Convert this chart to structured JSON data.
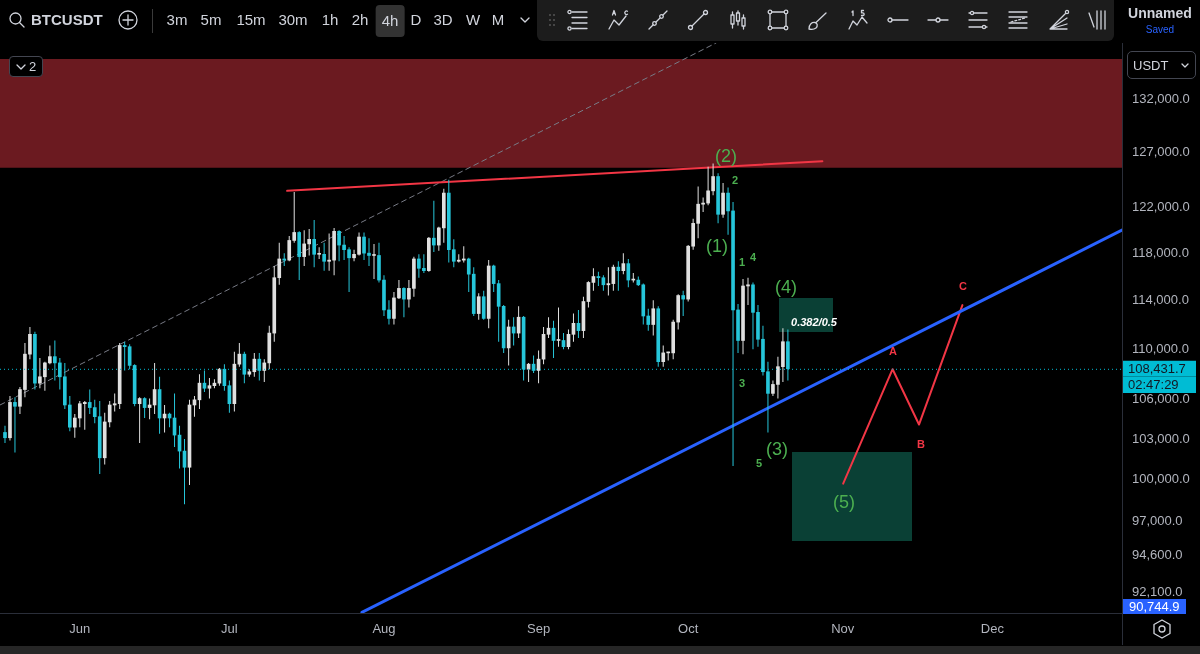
{
  "chart_data": {
    "type": "candlestick",
    "title": "BTCUSDT",
    "ylabel": "USDT",
    "x": [
      "--05-17",
      "--05-18",
      "--05-19",
      "--05-20",
      "--05-21",
      "--05-22",
      "--05-23",
      "--05-24",
      "--05-25",
      "--05-26",
      "--05-27",
      "--05-28",
      "--05-29",
      "--05-30",
      "--05-31",
      "--06-01",
      "--06-02",
      "--06-03",
      "--06-04",
      "--06-05",
      "--06-06",
      "--06-07",
      "--06-08",
      "--06-09",
      "--06-10",
      "--06-11",
      "--06-12",
      "--06-13",
      "--06-14",
      "--06-15",
      "--06-16",
      "--06-17",
      "--06-18",
      "--06-19",
      "--06-20",
      "--06-21",
      "--06-22",
      "--06-23",
      "--06-24",
      "--06-25",
      "--06-26",
      "--06-27",
      "--06-28",
      "--06-29",
      "--06-30",
      "--07-01",
      "--07-02",
      "--07-03",
      "--07-04",
      "--07-05",
      "--07-06",
      "--07-07",
      "--07-08",
      "--07-09",
      "--07-10",
      "--07-11",
      "--07-12",
      "--07-13",
      "--07-14",
      "--07-15",
      "--07-16",
      "--07-17",
      "--07-18",
      "--07-19",
      "--07-20",
      "--07-21",
      "--07-22",
      "--07-23",
      "--07-24",
      "--07-25",
      "--07-26",
      "--07-27",
      "--07-28",
      "--07-29",
      "--07-30",
      "--07-31",
      "--08-01",
      "--08-02",
      "--08-03",
      "--08-04",
      "--08-05",
      "--08-06",
      "--08-07",
      "--08-08",
      "--08-09",
      "--08-10",
      "--08-11",
      "--08-12",
      "--08-13",
      "--08-14",
      "--08-15",
      "--08-16",
      "--08-17",
      "--08-18",
      "--08-19",
      "--08-20",
      "--08-21",
      "--08-22",
      "--08-23",
      "--08-24",
      "--08-25",
      "--08-26",
      "--08-27",
      "--08-28",
      "--08-29",
      "--08-30",
      "--08-31",
      "--09-01",
      "--09-02",
      "--09-03",
      "--09-04",
      "--09-05",
      "--09-06",
      "--09-07",
      "--09-08",
      "--09-09",
      "--09-10",
      "--09-11",
      "--09-12",
      "--09-13",
      "--09-14",
      "--09-15",
      "--09-16",
      "--09-17",
      "--09-18",
      "--09-19",
      "--09-20",
      "--09-21",
      "--09-22",
      "--09-23",
      "--09-24",
      "--09-25",
      "--09-26",
      "--09-27",
      "--09-28",
      "--09-29",
      "--09-30",
      "--10-01",
      "--10-02",
      "--10-03",
      "--10-04",
      "--10-05",
      "--10-06",
      "--10-07",
      "--10-08",
      "--10-09",
      "--10-10",
      "--10-11",
      "--10-12",
      "--10-13",
      "--10-14",
      "--10-15",
      "--10-16",
      "--10-17",
      "--10-18",
      "--10-19",
      "--10-20",
      "--10-21"
    ],
    "ohlc": [
      [
        103500,
        104000,
        102700,
        103100
      ],
      [
        103100,
        106300,
        102900,
        105800
      ],
      [
        105800,
        106200,
        102000,
        105500
      ],
      [
        105500,
        107000,
        104900,
        106800
      ],
      [
        106800,
        110500,
        106200,
        109600
      ],
      [
        109600,
        111800,
        109200,
        111200
      ],
      [
        111200,
        111400,
        106800,
        107300
      ],
      [
        107300,
        109300,
        106900,
        107800
      ],
      [
        107800,
        109000,
        106700,
        108900
      ],
      [
        108900,
        110300,
        108800,
        109400
      ],
      [
        109400,
        110700,
        107500,
        108900
      ],
      [
        108900,
        109300,
        106800,
        107800
      ],
      [
        107800,
        108900,
        105300,
        105600
      ],
      [
        105600,
        106300,
        103600,
        103900
      ],
      [
        103900,
        104900,
        103100,
        104600
      ],
      [
        104600,
        105900,
        103900,
        105700
      ],
      [
        105700,
        105900,
        103700,
        105800
      ],
      [
        105800,
        106800,
        104900,
        105400
      ],
      [
        105400,
        106000,
        104200,
        104700
      ],
      [
        104700,
        105900,
        100400,
        101600
      ],
      [
        101600,
        105000,
        101100,
        104300
      ],
      [
        104300,
        105900,
        103900,
        105600
      ],
      [
        105600,
        106500,
        105100,
        105700
      ],
      [
        105700,
        110500,
        105300,
        110300
      ],
      [
        110300,
        110600,
        108300,
        110200
      ],
      [
        110200,
        110400,
        108400,
        108700
      ],
      [
        108700,
        108800,
        105500,
        105700
      ],
      [
        105700,
        106200,
        102700,
        106100
      ],
      [
        106100,
        106200,
        104600,
        105400
      ],
      [
        105400,
        106100,
        104500,
        105600
      ],
      [
        105600,
        108900,
        104900,
        106800
      ],
      [
        106800,
        107800,
        103400,
        104600
      ],
      [
        104600,
        105600,
        103500,
        104900
      ],
      [
        104900,
        105000,
        103900,
        104600
      ],
      [
        104600,
        106500,
        102400,
        103300
      ],
      [
        103300,
        104000,
        100800,
        102100
      ],
      [
        102100,
        103000,
        98200,
        100900
      ],
      [
        100900,
        106000,
        99600,
        105600
      ],
      [
        105600,
        106300,
        104700,
        106000
      ],
      [
        106000,
        108000,
        105300,
        107300
      ],
      [
        107300,
        108300,
        106600,
        106900
      ],
      [
        106900,
        107700,
        106100,
        107100
      ],
      [
        107100,
        107600,
        106900,
        107300
      ],
      [
        107300,
        108500,
        107100,
        108400
      ],
      [
        108400,
        108800,
        106700,
        107100
      ],
      [
        107100,
        107500,
        105000,
        105700
      ],
      [
        105700,
        109800,
        105100,
        108800
      ],
      [
        108800,
        110500,
        108600,
        109600
      ],
      [
        109600,
        109800,
        107300,
        108000
      ],
      [
        108000,
        108400,
        107800,
        108200
      ],
      [
        108200,
        109700,
        107800,
        109200
      ],
      [
        109200,
        109700,
        107500,
        108300
      ],
      [
        108300,
        109200,
        107400,
        108900
      ],
      [
        108900,
        111900,
        108400,
        111300
      ],
      [
        111300,
        116900,
        110600,
        115900
      ],
      [
        115900,
        118900,
        115300,
        117500
      ],
      [
        117500,
        118000,
        116900,
        117400
      ],
      [
        117400,
        119500,
        117300,
        119100
      ],
      [
        119100,
        123400,
        118900,
        119800
      ],
      [
        119800,
        119900,
        115700,
        117700
      ],
      [
        117700,
        120000,
        116900,
        118800
      ],
      [
        118800,
        120100,
        117800,
        119200
      ],
      [
        119200,
        120900,
        116800,
        117900
      ],
      [
        117900,
        118500,
        117500,
        117900
      ],
      [
        117900,
        118900,
        116500,
        117300
      ],
      [
        117300,
        119700,
        116500,
        117400
      ],
      [
        117400,
        120200,
        116100,
        119900
      ],
      [
        119900,
        120000,
        117300,
        118700
      ],
      [
        118700,
        119500,
        117400,
        118300
      ],
      [
        118300,
        118500,
        114700,
        117600
      ],
      [
        117600,
        118300,
        117300,
        117900
      ],
      [
        117900,
        119800,
        117800,
        119400
      ],
      [
        119400,
        119800,
        117400,
        118000
      ],
      [
        118000,
        119300,
        116900,
        117800
      ],
      [
        117800,
        118800,
        115800,
        117800
      ],
      [
        117800,
        118900,
        115500,
        115700
      ],
      [
        115700,
        116100,
        112700,
        113200
      ],
      [
        113200,
        114000,
        112000,
        112500
      ],
      [
        112500,
        114700,
        112000,
        114200
      ],
      [
        114200,
        115700,
        114100,
        115000
      ],
      [
        115000,
        115100,
        112600,
        114100
      ],
      [
        114100,
        115700,
        113400,
        115000
      ],
      [
        115000,
        117700,
        114300,
        117500
      ],
      [
        117500,
        117900,
        115900,
        116700
      ],
      [
        116700,
        117900,
        116300,
        116500
      ],
      [
        116500,
        119400,
        116400,
        119300
      ],
      [
        119300,
        122600,
        118100,
        118700
      ],
      [
        118700,
        120300,
        118200,
        120200
      ],
      [
        120200,
        123700,
        118900,
        123300
      ],
      [
        123300,
        124500,
        117200,
        118300
      ],
      [
        118300,
        119200,
        116800,
        117300
      ],
      [
        117300,
        117900,
        117200,
        117400
      ],
      [
        117400,
        118600,
        117200,
        117500
      ],
      [
        117500,
        117600,
        114700,
        116200
      ],
      [
        116200,
        116800,
        112700,
        112900
      ],
      [
        112900,
        114600,
        112400,
        114300
      ],
      [
        114300,
        114800,
        112400,
        112500
      ],
      [
        112500,
        117400,
        111700,
        116900
      ],
      [
        116900,
        117000,
        114700,
        115400
      ],
      [
        115400,
        115700,
        110600,
        113500
      ],
      [
        113500,
        113600,
        109700,
        110100
      ],
      [
        110100,
        112400,
        108700,
        111800
      ],
      [
        111800,
        112600,
        110300,
        111300
      ],
      [
        111300,
        113500,
        110900,
        112600
      ],
      [
        112600,
        112700,
        107500,
        108400
      ],
      [
        108400,
        108900,
        107400,
        108800
      ],
      [
        108800,
        109500,
        108100,
        108300
      ],
      [
        108300,
        109900,
        107300,
        109200
      ],
      [
        109200,
        111800,
        108800,
        111200
      ],
      [
        111200,
        112600,
        110900,
        111700
      ],
      [
        111700,
        112300,
        109300,
        110700
      ],
      [
        110700,
        113400,
        110200,
        110700
      ],
      [
        110700,
        111300,
        110000,
        110200
      ],
      [
        110200,
        111600,
        110000,
        111200
      ],
      [
        111200,
        112900,
        110600,
        112100
      ],
      [
        112100,
        113200,
        110900,
        111500
      ],
      [
        111500,
        114300,
        110900,
        113900
      ],
      [
        113900,
        115600,
        113400,
        115500
      ],
      [
        115500,
        116700,
        114800,
        116000
      ],
      [
        116000,
        116400,
        115200,
        115900
      ],
      [
        115900,
        116100,
        114800,
        115300
      ],
      [
        115300,
        116800,
        114400,
        115400
      ],
      [
        115400,
        117000,
        114800,
        116800
      ],
      [
        116800,
        117300,
        114800,
        116500
      ],
      [
        116500,
        118000,
        116200,
        117100
      ],
      [
        117100,
        117500,
        115100,
        115700
      ],
      [
        115700,
        116300,
        115500,
        115700
      ],
      [
        115700,
        116000,
        115200,
        115300
      ],
      [
        115300,
        115400,
        112000,
        112700
      ],
      [
        112700,
        113300,
        111500,
        112000
      ],
      [
        112000,
        114000,
        111100,
        113300
      ],
      [
        113300,
        113500,
        108600,
        109000
      ],
      [
        109000,
        110300,
        108600,
        109700
      ],
      [
        109700,
        109800,
        109100,
        109700
      ],
      [
        109700,
        112400,
        109200,
        112200
      ],
      [
        112200,
        114500,
        111600,
        114400
      ],
      [
        114400,
        114800,
        112700,
        114100
      ],
      [
        114100,
        118700,
        113900,
        118600
      ],
      [
        118600,
        121000,
        118300,
        120600
      ],
      [
        120600,
        123900,
        119300,
        122300
      ],
      [
        122300,
        122900,
        121600,
        122400
      ],
      [
        122400,
        125700,
        122200,
        123500
      ],
      [
        123500,
        126000,
        123100,
        124800
      ],
      [
        124800,
        125100,
        120600,
        121400
      ],
      [
        121400,
        124200,
        121100,
        123300
      ],
      [
        123300,
        123800,
        119600,
        121700
      ],
      [
        121700,
        122500,
        101000,
        113200
      ],
      [
        113200,
        113700,
        109700,
        110700
      ],
      [
        110700,
        115800,
        109600,
        115200
      ],
      [
        115200,
        115900,
        113600,
        115300
      ],
      [
        115300,
        115500,
        110000,
        113000
      ],
      [
        113000,
        113600,
        110200,
        110800
      ],
      [
        110800,
        111900,
        107900,
        108200
      ],
      [
        108200,
        109000,
        103500,
        106500
      ],
      [
        106500,
        107500,
        106300,
        107200
      ],
      [
        107200,
        109400,
        106100,
        108600
      ],
      [
        108600,
        111700,
        107400,
        110600
      ],
      [
        110600,
        111600,
        107500,
        108431.7
      ]
    ],
    "colors": [
      "#26c6da",
      "#e0e0e0",
      "#26c6da",
      "#e0e0e0",
      "#e0e0e0",
      "#e0e0e0",
      "#26c6da",
      "#e0e0e0",
      "#e0e0e0",
      "#e0e0e0",
      "#26c6da",
      "#26c6da",
      "#26c6da",
      "#26c6da",
      "#e0e0e0",
      "#e0e0e0",
      "#e0e0e0",
      "#26c6da",
      "#26c6da",
      "#26c6da",
      "#e0e0e0",
      "#e0e0e0",
      "#e0e0e0",
      "#e0e0e0",
      "#26c6da",
      "#26c6da",
      "#26c6da",
      "#e0e0e0",
      "#26c6da",
      "#e0e0e0",
      "#e0e0e0",
      "#26c6da",
      "#e0e0e0",
      "#26c6da",
      "#26c6da",
      "#26c6da",
      "#26c6da",
      "#e0e0e0",
      "#e0e0e0",
      "#e0e0e0",
      "#26c6da",
      "#e0e0e0",
      "#e0e0e0",
      "#e0e0e0",
      "#26c6da",
      "#26c6da",
      "#e0e0e0",
      "#e0e0e0",
      "#26c6da",
      "#e0e0e0",
      "#e0e0e0",
      "#26c6da",
      "#e0e0e0",
      "#e0e0e0",
      "#e0e0e0",
      "#e0e0e0",
      "#26c6da",
      "#e0e0e0",
      "#e0e0e0",
      "#26c6da",
      "#e0e0e0",
      "#e0e0e0",
      "#26c6da",
      "#e0e0e0",
      "#26c6da",
      "#e0e0e0",
      "#e0e0e0",
      "#26c6da",
      "#26c6da",
      "#26c6da",
      "#e0e0e0",
      "#e0e0e0",
      "#26c6da",
      "#26c6da",
      "#e0e0e0",
      "#26c6da",
      "#26c6da",
      "#26c6da",
      "#e0e0e0",
      "#e0e0e0",
      "#26c6da",
      "#e0e0e0",
      "#e0e0e0",
      "#26c6da",
      "#26c6da",
      "#e0e0e0",
      "#26c6da",
      "#e0e0e0",
      "#e0e0e0",
      "#26c6da",
      "#26c6da",
      "#e0e0e0",
      "#e0e0e0",
      "#26c6da",
      "#26c6da",
      "#e0e0e0",
      "#26c6da",
      "#e0e0e0",
      "#26c6da",
      "#26c6da",
      "#26c6da",
      "#e0e0e0",
      "#26c6da",
      "#e0e0e0",
      "#26c6da",
      "#e0e0e0",
      "#26c6da",
      "#e0e0e0",
      "#e0e0e0",
      "#e0e0e0",
      "#26c6da",
      "#e0e0e0",
      "#26c6da",
      "#e0e0e0",
      "#e0e0e0",
      "#26c6da",
      "#e0e0e0",
      "#e0e0e0",
      "#e0e0e0",
      "#26c6da",
      "#26c6da",
      "#e0e0e0",
      "#e0e0e0",
      "#26c6da",
      "#e0e0e0",
      "#26c6da",
      "#e0e0e0",
      "#26c6da",
      "#26c6da",
      "#26c6da",
      "#e0e0e0",
      "#26c6da",
      "#e0e0e0",
      "#e0e0e0",
      "#e0e0e0",
      "#e0e0e0",
      "#26c6da",
      "#e0e0e0",
      "#e0e0e0",
      "#e0e0e0",
      "#e0e0e0",
      "#e0e0e0",
      "#e0e0e0",
      "#26c6da",
      "#e0e0e0",
      "#26c6da",
      "#26c6da",
      "#26c6da",
      "#e0e0e0",
      "#e0e0e0",
      "#26c6da",
      "#26c6da",
      "#26c6da",
      "#26c6da",
      "#e0e0e0",
      "#e0e0e0",
      "#e0e0e0",
      "#26c6da"
    ],
    "series": [
      {
        "type": "line",
        "color": "#2962ff",
        "x": [
          "--07-27T14:00",
          "--12-27"
        ],
        "values": [
          90744.9,
          120000
        ]
      },
      {
        "type": "line",
        "color": "#f23645",
        "x": [
          "--07-12T14:00",
          "--10-27T22:00"
        ],
        "values": [
          123500,
          126200
        ]
      },
      {
        "type": "line",
        "color": "#787b86",
        "line_style": "dashed",
        "x": [
          "--05-16",
          "--10-06T14:00"
        ],
        "values": [
          105600,
          137600
        ]
      },
      {
        "type": "line",
        "color": "#f23645",
        "x": [
          "--11-01T02:00",
          "--11-11",
          "--11-16T07:00",
          "--11-25"
        ],
        "values": [
          99700,
          108400,
          104100,
          113600
        ]
      }
    ],
    "xlim": [
      "--05-16",
      "--12-27"
    ],
    "xticks": [
      {
        "value": "--06-01",
        "label": "Jun"
      },
      {
        "value": "--07-01",
        "label": "Jul"
      },
      {
        "value": "--08-01",
        "label": "Aug"
      },
      {
        "value": "--09-01",
        "label": "Sep"
      },
      {
        "value": "--10-01",
        "label": "Oct"
      },
      {
        "value": "--11-01",
        "label": "Nov"
      },
      {
        "value": "--12-01",
        "label": "Dec"
      }
    ],
    "ylim": [
      90700,
      137600
    ],
    "log": true,
    "yticks": [
      {
        "value": 92100,
        "label": "92,100.0"
      },
      {
        "value": 94600,
        "label": "94,600.0"
      },
      {
        "value": 97000,
        "label": "97,000.0"
      },
      {
        "value": 100000,
        "label": "100,000.0"
      },
      {
        "value": 103000,
        "label": "103,000.0"
      },
      {
        "value": 106000,
        "label": "106,000.0"
      },
      {
        "value": 110000,
        "label": "110,000.0"
      },
      {
        "value": 114000,
        "label": "114,000.0"
      },
      {
        "value": 118000,
        "label": "118,000.0"
      },
      {
        "value": 122000,
        "label": "122,000.0"
      },
      {
        "value": 127000,
        "label": "127,000.0"
      },
      {
        "value": 132000,
        "label": "132,000.0"
      }
    ],
    "ref_lines": [
      {
        "axis": "y",
        "value": 108431.7,
        "label": "108,431.7",
        "color": "#00bcd4",
        "line_style": "dotted"
      }
    ],
    "bands": [
      {
        "axis": "y",
        "from": 125600,
        "to": 136000,
        "color": "#6b1a20"
      }
    ],
    "annotations": [
      "(1)",
      "(2)",
      "(3)",
      "(4)",
      "(5)",
      "1",
      "2",
      "3",
      "4",
      "5",
      "A",
      "B",
      "C",
      "0.382/0.5",
      "02:47:29",
      "90,744.9",
      "3m",
      "5m",
      "15m",
      "30m",
      "1h",
      "2h",
      "4h",
      "D",
      "3D",
      "W",
      "M",
      "Unnamed",
      "Saved",
      "2"
    ]
  }
}
